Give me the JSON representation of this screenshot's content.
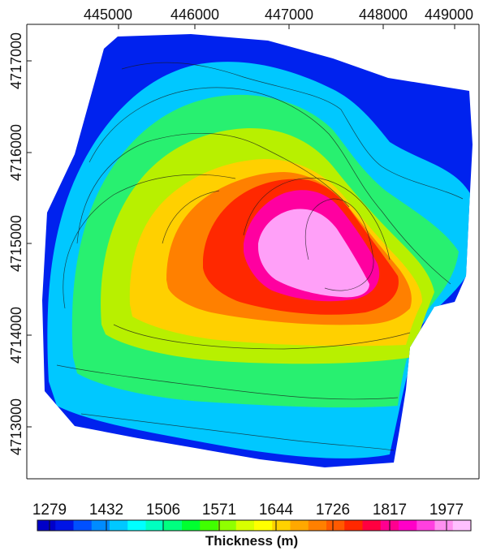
{
  "map": {
    "x_ticks": [
      "445000",
      "446000",
      "447000",
      "448000",
      "449000"
    ],
    "y_ticks": [
      "4717000",
      "4716000",
      "4715000",
      "4714000",
      "4713000"
    ],
    "legend": {
      "values": [
        "1279",
        "1432",
        "1506",
        "1571",
        "1644",
        "1726",
        "1817",
        "1977"
      ],
      "title": "Thickness (m)",
      "colors": [
        "#0000c8",
        "#0014e6",
        "#0050ff",
        "#008cff",
        "#00c8ff",
        "#00ffff",
        "#00ffc0",
        "#00ff80",
        "#00ff30",
        "#40ff00",
        "#90ff00",
        "#d8ff00",
        "#ffff00",
        "#ffd200",
        "#ffa800",
        "#ff8000",
        "#ff5a00",
        "#ff2800",
        "#ff0040",
        "#ff0090",
        "#ff00c8",
        "#ff40e0",
        "#ff90f0",
        "#ffc0ff"
      ]
    },
    "contour_palette": [
      "#0022ee",
      "#00c8ff",
      "#28f070",
      "#b8f000",
      "#ffd000",
      "#ff8000",
      "#ff2800",
      "#ff00a0",
      "#ffa0f8"
    ]
  }
}
